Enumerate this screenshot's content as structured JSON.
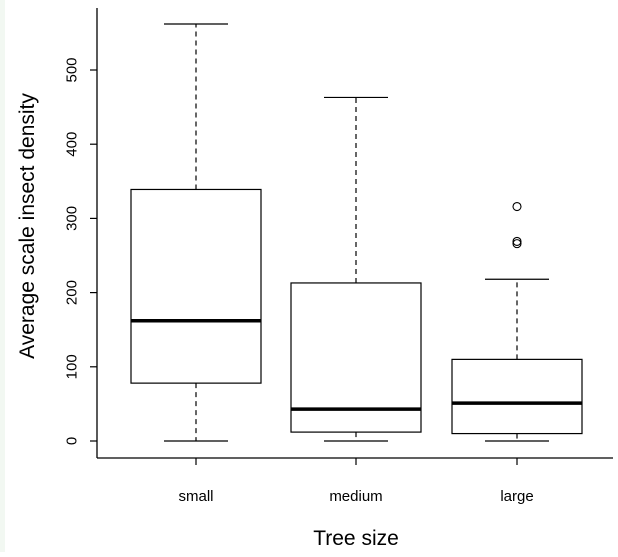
{
  "chart_data": {
    "type": "boxplot",
    "title": "",
    "xlabel": "Tree size",
    "ylabel": "Average scale insect density",
    "ylim": [
      0,
      570
    ],
    "yticks": [
      0,
      100,
      200,
      300,
      400,
      500
    ],
    "categories": [
      "small",
      "medium",
      "large"
    ],
    "boxes": [
      {
        "category": "small",
        "whisker_low": 0,
        "q1": 78,
        "median": 162,
        "q3": 339,
        "whisker_high": 562,
        "outliers": []
      },
      {
        "category": "medium",
        "whisker_low": 0,
        "q1": 12,
        "median": 43,
        "q3": 213,
        "whisker_high": 463,
        "outliers": []
      },
      {
        "category": "large",
        "whisker_low": 0,
        "q1": 10,
        "median": 51,
        "q3": 110,
        "whisker_high": 218,
        "outliers": [
          269,
          266,
          316
        ]
      }
    ],
    "grid": false,
    "legend": "none"
  }
}
